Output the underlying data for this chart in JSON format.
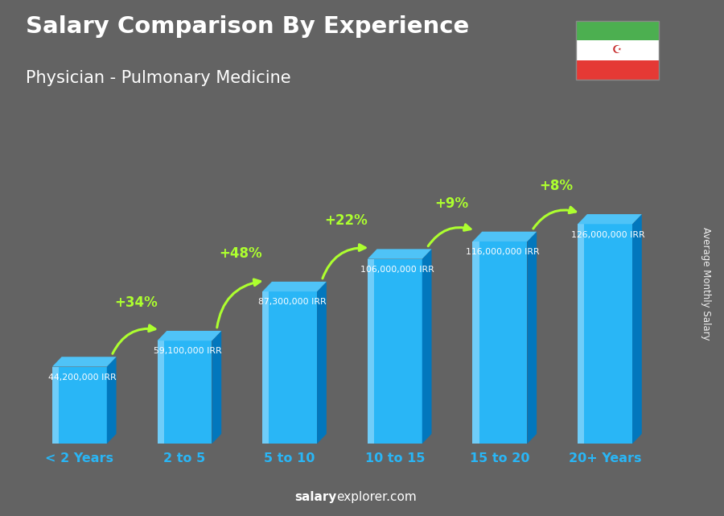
{
  "title": "Salary Comparison By Experience",
  "subtitle": "Physician - Pulmonary Medicine",
  "categories": [
    "< 2 Years",
    "2 to 5",
    "5 to 10",
    "10 to 15",
    "15 to 20",
    "20+ Years"
  ],
  "values": [
    44200000,
    59100000,
    87300000,
    106000000,
    116000000,
    126000000
  ],
  "pct_changes": [
    "+34%",
    "+48%",
    "+22%",
    "+9%",
    "+8%"
  ],
  "value_labels": [
    "44,200,000 IRR",
    "59,100,000 IRR",
    "87,300,000 IRR",
    "106,000,000 IRR",
    "116,000,000 IRR",
    "126,000,000 IRR"
  ],
  "background_color": "#636363",
  "bar_front_color": "#29B6F6",
  "bar_left_highlight": "#81D4FA",
  "bar_right_color": "#0277BD",
  "bar_top_color": "#4FC3F7",
  "ylabel": "Average Monthly Salary",
  "watermark_salary": "salary",
  "watermark_rest": "explorer.com",
  "arrow_color": "#ADFF2F",
  "pct_color": "#ADFF2F",
  "value_label_color": "#FFFFFF",
  "xlabel_color": "#29B6F6",
  "title_color": "#FFFFFF",
  "subtitle_color": "#FFFFFF",
  "flag_green": "#4CAF50",
  "flag_white": "#FFFFFF",
  "flag_red": "#E53935"
}
